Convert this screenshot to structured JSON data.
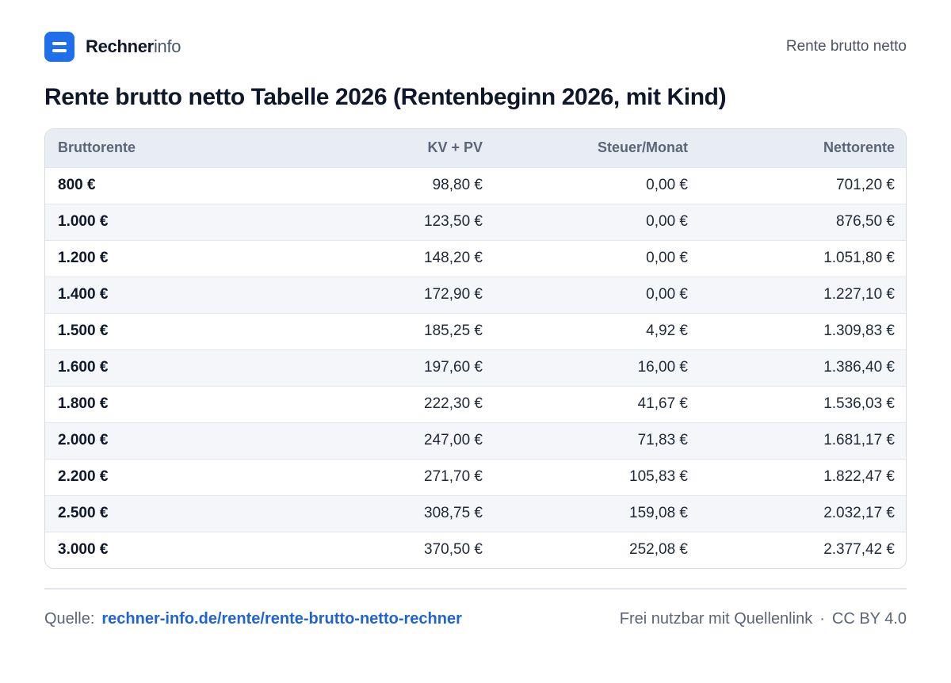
{
  "header": {
    "brand_strong": "Rechner",
    "brand_light": "info",
    "top_link": "Rente brutto netto",
    "logo_icon": "rechnerinfo-logo-icon",
    "accent_color": "#1f6feb"
  },
  "title": "Rente brutto netto Tabelle 2026 (Rentenbeginn 2026, mit Kind)",
  "table": {
    "columns": [
      "Bruttorente",
      "KV + PV",
      "Steuer/Monat",
      "Nettorente"
    ],
    "rows": [
      [
        "800 €",
        "98,80 €",
        "0,00 €",
        "701,20 €"
      ],
      [
        "1.000 €",
        "123,50 €",
        "0,00 €",
        "876,50 €"
      ],
      [
        "1.200 €",
        "148,20 €",
        "0,00 €",
        "1.051,80 €"
      ],
      [
        "1.400 €",
        "172,90 €",
        "0,00 €",
        "1.227,10 €"
      ],
      [
        "1.500 €",
        "185,25 €",
        "4,92 €",
        "1.309,83 €"
      ],
      [
        "1.600 €",
        "197,60 €",
        "16,00 €",
        "1.386,40 €"
      ],
      [
        "1.800 €",
        "222,30 €",
        "41,67 €",
        "1.536,03 €"
      ],
      [
        "2.000 €",
        "247,00 €",
        "71,83 €",
        "1.681,17 €"
      ],
      [
        "2.200 €",
        "271,70 €",
        "105,83 €",
        "1.822,47 €"
      ],
      [
        "2.500 €",
        "308,75 €",
        "159,08 €",
        "2.032,17 €"
      ],
      [
        "3.000 €",
        "370,50 €",
        "252,08 €",
        "2.377,42 €"
      ]
    ]
  },
  "footer": {
    "source_label": "Quelle:",
    "source_link": "rechner-info.de/rente/rente-brutto-netto-rechner",
    "license_text": "Frei nutzbar mit Quellenlink",
    "separator": "·",
    "license_name": "CC BY 4.0",
    "link_color": "#1f63d6"
  }
}
